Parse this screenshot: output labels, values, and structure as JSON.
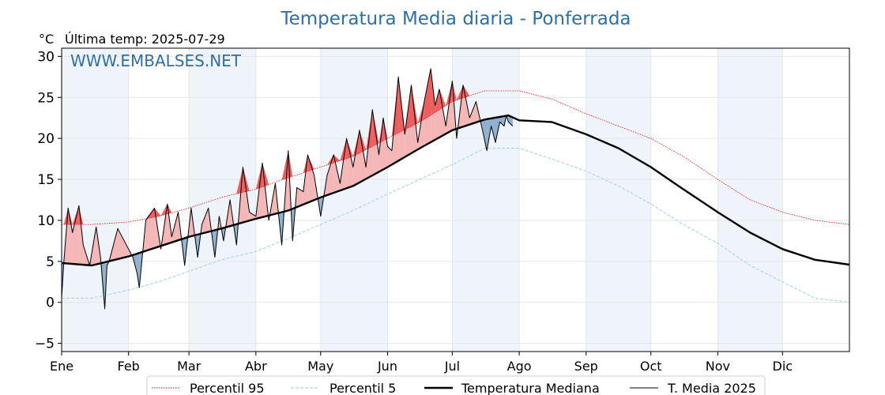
{
  "chart_data": {
    "type": "line",
    "title": "Temperatura Media diaria - Ponferrada",
    "unit_label": "°C",
    "subtitle": "Última temp: 2025-07-29",
    "watermark": "WWW.EMBALSES.NET",
    "xlabel": "",
    "ylabel": "",
    "ylim": [
      -6,
      31
    ],
    "xlim": [
      1,
      366
    ],
    "y_ticks": [
      -5,
      0,
      5,
      10,
      15,
      20,
      25,
      30
    ],
    "y_tick_labels": [
      "−5",
      "0",
      "5",
      "10",
      "15",
      "20",
      "25",
      "30"
    ],
    "month_ticks": [
      {
        "label": "Ene",
        "day": 1
      },
      {
        "label": "Feb",
        "day": 32
      },
      {
        "label": "Mar",
        "day": 60
      },
      {
        "label": "Abr",
        "day": 91
      },
      {
        "label": "May",
        "day": 121
      },
      {
        "label": "Jun",
        "day": 152
      },
      {
        "label": "Jul",
        "day": 182
      },
      {
        "label": "Ago",
        "day": 213
      },
      {
        "label": "Sep",
        "day": 244
      },
      {
        "label": "Oct",
        "day": 274
      },
      {
        "label": "Nov",
        "day": 305
      },
      {
        "label": "Dic",
        "day": 335
      }
    ],
    "grid": true,
    "legend_position": "bottom-center",
    "legend": [
      {
        "label": "Percentil 95",
        "style": "dotted",
        "color": "#ff0000"
      },
      {
        "label": "Percentil 5",
        "style": "dashed",
        "color": "#add8e6"
      },
      {
        "label": "Temperatura Mediana",
        "style": "thick",
        "color": "#000000"
      },
      {
        "label": "T. Media 2025",
        "style": "thin",
        "color": "#000000"
      }
    ],
    "colors": {
      "title": "#2e6fa6",
      "watermark": "#2e6fa6",
      "p95": "#ff0000",
      "p5": "#add8e6",
      "above_fill": "#f4b6b6",
      "above_extreme": "#ee5e5e",
      "below_fill": "#8fb0cf",
      "shade": "#eef4fa"
    },
    "series": [
      {
        "name": "Percentil 95",
        "x": [
          1,
          15,
          32,
          46,
          60,
          75,
          91,
          106,
          121,
          136,
          152,
          167,
          182,
          197,
          213,
          228,
          244,
          259,
          274,
          289,
          305,
          320,
          335,
          350,
          366
        ],
        "values": [
          9.5,
          9.5,
          9.8,
          10.5,
          11.5,
          12.8,
          13.8,
          15.2,
          16.5,
          17.8,
          20,
          22,
          24.5,
          25.8,
          25.8,
          24.8,
          23,
          21.5,
          20,
          17.8,
          15,
          12.5,
          11,
          10,
          9.5
        ]
      },
      {
        "name": "Percentil 5",
        "x": [
          1,
          15,
          32,
          46,
          60,
          75,
          91,
          106,
          121,
          136,
          152,
          167,
          182,
          197,
          213,
          228,
          244,
          259,
          274,
          289,
          305,
          320,
          335,
          350,
          366
        ],
        "values": [
          0.5,
          0.5,
          1.5,
          2.5,
          3.8,
          5.2,
          6.2,
          7.8,
          9.5,
          11.2,
          13.2,
          15,
          16.8,
          18.8,
          18.8,
          17.5,
          16,
          14.2,
          12,
          9.5,
          7.2,
          4.5,
          2.5,
          0.5,
          0
        ]
      },
      {
        "name": "Temperatura Mediana",
        "x": [
          1,
          15,
          32,
          46,
          60,
          75,
          91,
          106,
          121,
          136,
          152,
          167,
          182,
          197,
          208,
          213,
          228,
          244,
          259,
          274,
          289,
          305,
          320,
          335,
          350,
          366
        ],
        "values": [
          4.8,
          4.5,
          5.6,
          6.8,
          8,
          9,
          10.2,
          11.2,
          12.8,
          14.2,
          16.5,
          18.8,
          21,
          22.3,
          22.8,
          22.2,
          22,
          20.5,
          18.8,
          16.5,
          13.8,
          11,
          8.5,
          6.5,
          5.2,
          4.6
        ]
      },
      {
        "name": "T. Media 2025",
        "x": [
          1,
          2,
          4,
          6,
          9,
          11,
          14,
          17,
          19,
          21,
          22,
          23,
          27,
          32,
          34,
          36,
          37,
          40,
          44,
          47,
          50,
          52,
          55,
          58,
          61,
          64,
          66,
          69,
          72,
          74,
          76,
          79,
          82,
          85,
          88,
          91,
          94,
          97,
          100,
          103,
          106,
          108,
          110,
          113,
          115,
          118,
          121,
          124,
          127,
          130,
          133,
          136,
          139,
          142,
          145,
          148,
          150,
          152,
          154,
          157,
          160,
          163,
          166,
          169,
          172,
          174,
          176,
          179,
          182,
          184,
          187,
          190,
          193,
          196,
          198,
          200,
          202,
          204,
          206,
          207,
          208,
          210
        ],
        "values": [
          0.5,
          4.8,
          11.5,
          8.5,
          11.8,
          7,
          4.5,
          9.2,
          5.5,
          -0.8,
          4.5,
          5,
          9,
          6.5,
          5.5,
          3.5,
          1.8,
          10,
          11.5,
          6.5,
          12,
          8,
          11,
          4.5,
          11.5,
          5.5,
          9.5,
          11.5,
          5.5,
          10.5,
          7.5,
          12.5,
          7,
          16.5,
          11,
          10.5,
          17,
          10,
          14.5,
          7,
          18.5,
          7.5,
          14,
          13.5,
          18,
          15.5,
          10.5,
          15.5,
          18,
          14.5,
          20,
          16.5,
          21,
          16.5,
          23.5,
          18,
          22.5,
          19,
          18.5,
          27.5,
          20.5,
          26.5,
          19.5,
          24.5,
          28.5,
          24,
          26,
          21.5,
          27,
          20,
          26.5,
          22.5,
          24.5,
          21,
          18.5,
          21.5,
          19.5,
          22,
          21.5,
          22.8,
          22,
          21.5
        ]
      }
    ]
  }
}
